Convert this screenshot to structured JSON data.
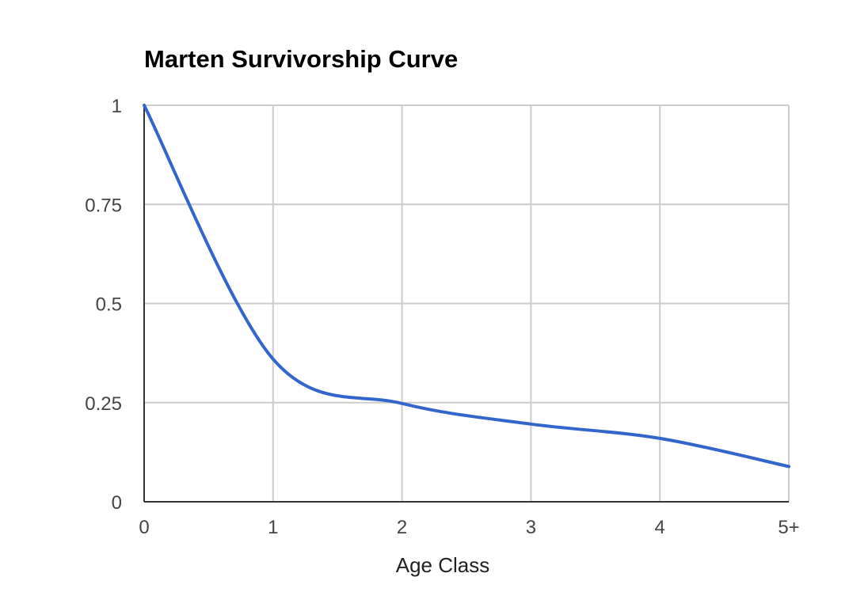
{
  "chart_data": {
    "type": "line",
    "title": "Marten Survivorship Curve",
    "xlabel": "Age Class",
    "ylabel": "",
    "x_tick_labels": [
      "0",
      "1",
      "2",
      "3",
      "4",
      "5+"
    ],
    "y_tick_labels": [
      "0",
      "0.25",
      "0.5",
      "0.75",
      "1"
    ],
    "y_ticks": [
      0,
      0.25,
      0.5,
      0.75,
      1
    ],
    "xlim": [
      0,
      5
    ],
    "ylim": [
      0,
      1
    ],
    "grid": true,
    "smooth": true,
    "series": [
      {
        "color": "#3366cc",
        "x": [
          0,
          1,
          2,
          3,
          4,
          5
        ],
        "values": [
          1.0,
          0.36,
          0.248,
          0.196,
          0.16,
          0.089
        ]
      }
    ]
  }
}
